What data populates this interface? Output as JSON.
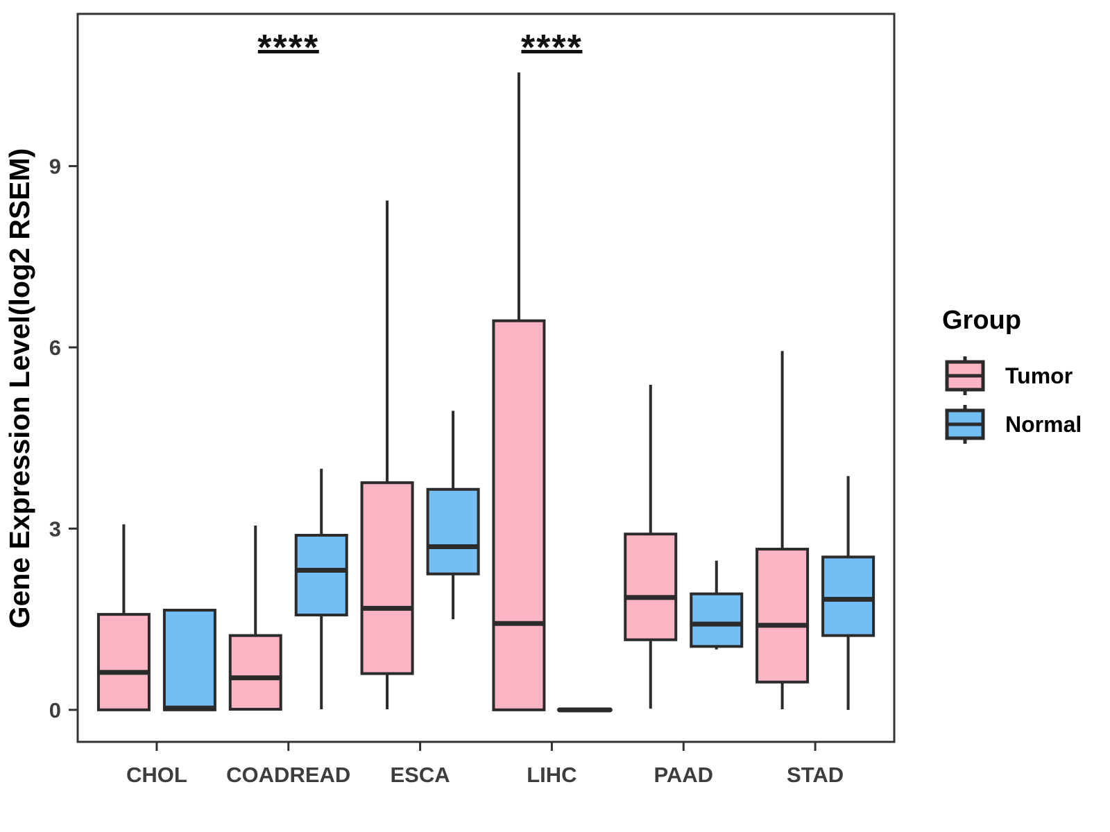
{
  "chart_data": {
    "type": "grouped_boxplot",
    "title": "",
    "xlabel": "",
    "ylabel": "Gene Expression Level(log2 RSEM)",
    "ylim": [
      -0.53,
      11.52
    ],
    "yticks": [
      0,
      3,
      6,
      9
    ],
    "grid": false,
    "categories": [
      "CHOL",
      "COADREAD",
      "ESCA",
      "LIHC",
      "PAAD",
      "STAD"
    ],
    "colors": {
      "tumor_fill": "#FBB4C4",
      "normal_fill": "#74BEF5",
      "box_stroke": "#2b2b2b",
      "panel_border": "#333333",
      "tick_text": "#3d3d3d",
      "annotation": "#111111"
    },
    "series": [
      {
        "name": "Tumor",
        "color": "#FBB4C4",
        "boxes": [
          {
            "category": "CHOL",
            "min": 0,
            "q1": 0,
            "median": 0.62,
            "q3": 1.58,
            "max": 3.07
          },
          {
            "category": "COADREAD",
            "min": 0,
            "q1": 0.01,
            "median": 0.53,
            "q3": 1.23,
            "max": 3.05
          },
          {
            "category": "ESCA",
            "min": 0.01,
            "q1": 0.6,
            "median": 1.68,
            "q3": 3.76,
            "max": 8.43
          },
          {
            "category": "LIHC",
            "min": 0,
            "q1": 0,
            "median": 1.43,
            "q3": 6.44,
            "max": 10.55
          },
          {
            "category": "PAAD",
            "min": 0.02,
            "q1": 1.16,
            "median": 1.86,
            "q3": 2.91,
            "max": 5.38
          },
          {
            "category": "STAD",
            "min": 0.01,
            "q1": 0.46,
            "median": 1.4,
            "q3": 2.66,
            "max": 5.94
          }
        ]
      },
      {
        "name": "Normal",
        "color": "#74BEF5",
        "boxes": [
          {
            "category": "CHOL",
            "min": 0,
            "q1": 0,
            "median": 0.03,
            "q3": 1.65,
            "max": 1.65
          },
          {
            "category": "COADREAD",
            "min": 0.01,
            "q1": 1.57,
            "median": 2.31,
            "q3": 2.89,
            "max": 3.99
          },
          {
            "category": "ESCA",
            "min": 1.5,
            "q1": 2.25,
            "median": 2.7,
            "q3": 3.65,
            "max": 4.95
          },
          {
            "category": "LIHC",
            "min": 0,
            "q1": 0,
            "median": 0,
            "q3": 0,
            "max": 0
          },
          {
            "category": "PAAD",
            "min": 1.0,
            "q1": 1.05,
            "median": 1.42,
            "q3": 1.92,
            "max": 2.47
          },
          {
            "category": "STAD",
            "min": 0,
            "q1": 1.23,
            "median": 1.83,
            "q3": 2.53,
            "max": 3.87
          }
        ]
      }
    ],
    "annotations": [
      {
        "category": "COADREAD",
        "label": "****"
      },
      {
        "category": "LIHC",
        "label": "****"
      }
    ],
    "legend": {
      "title": "Group",
      "entries": [
        {
          "label": "Tumor"
        },
        {
          "label": "Normal"
        }
      ],
      "position": "right"
    }
  }
}
